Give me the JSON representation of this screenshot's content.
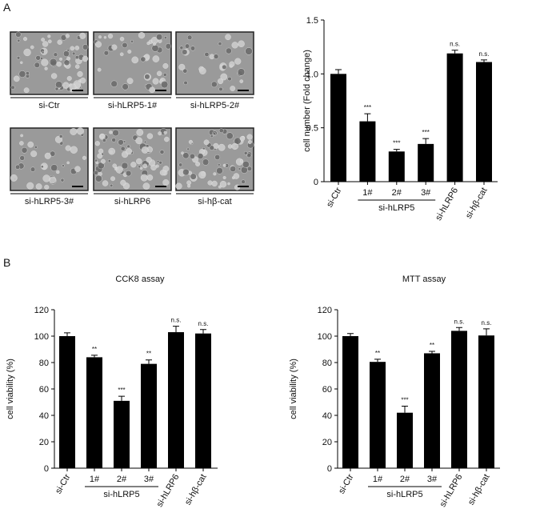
{
  "panels": [
    "A",
    "B"
  ],
  "images": [
    {
      "label": "si-Ctr"
    },
    {
      "label": "si-hLRP5-1#"
    },
    {
      "label": "si-hLRP5-2#"
    },
    {
      "label": "si-hLRP5-3#"
    },
    {
      "label": "si-hLRP6"
    },
    {
      "label": "si-hβ-cat"
    }
  ],
  "chart_data": [
    {
      "type": "bar",
      "ylabel": "cell number (Fold change)",
      "categories": [
        "si-Ctr",
        "1#",
        "2#",
        "3#",
        "si-hLRP6",
        "si-hβ-cat"
      ],
      "groups": [
        {
          "label": "si-hLRP5",
          "categories": [
            "1#",
            "2#",
            "3#"
          ]
        }
      ],
      "values": [
        1.0,
        0.56,
        0.28,
        0.35,
        1.19,
        1.11
      ],
      "errors": [
        0.04,
        0.07,
        0.02,
        0.05,
        0.03,
        0.02
      ],
      "annotations": [
        null,
        "***",
        "***",
        "***",
        "n.s.",
        "n.s."
      ],
      "color": "#000000",
      "ylim": [
        0,
        1.5
      ],
      "yticks": [
        0,
        0.5,
        {
          "value": 1,
          "label": "1.0"
        },
        1.5
      ]
    },
    {
      "type": "bar",
      "title": "CCK8 assay",
      "ylabel": "cell viability (%)",
      "categories": [
        "si-Ctr",
        "1#",
        "2#",
        "3#",
        "si-hLRP6",
        "si-hβ-cat"
      ],
      "groups": [
        {
          "label": "si-hLRP5",
          "categories": [
            "1#",
            "2#",
            "3#"
          ]
        }
      ],
      "values": [
        100,
        84,
        51,
        79,
        103,
        102
      ],
      "errors": [
        2.5,
        1.5,
        3.5,
        3,
        4.5,
        3
      ],
      "annotations": [
        null,
        "**",
        "***",
        "**",
        "n.s.",
        "n.s."
      ],
      "color": "#000000",
      "ylim": [
        0,
        120
      ],
      "yticks": [
        0,
        20,
        40,
        60,
        80,
        100,
        120
      ]
    },
    {
      "type": "bar",
      "title": "MTT assay",
      "ylabel": "cell viability (%)",
      "categories": [
        "si-Ctr",
        "1#",
        "2#",
        "3#",
        "si-hLRP6",
        "si-hβ-cat"
      ],
      "groups": [
        {
          "label": "si-hLRP5",
          "categories": [
            "1#",
            "2#",
            "3#"
          ]
        }
      ],
      "values": [
        100,
        80.5,
        42,
        87,
        104,
        100.5
      ],
      "errors": [
        2,
        2,
        5,
        1.5,
        2.5,
        5
      ],
      "annotations": [
        null,
        "**",
        "***",
        "**",
        "n.s.",
        "n.s."
      ],
      "color": "#000000",
      "ylim": [
        0,
        120
      ],
      "yticks": [
        0,
        20,
        40,
        60,
        80,
        100,
        120
      ]
    }
  ]
}
